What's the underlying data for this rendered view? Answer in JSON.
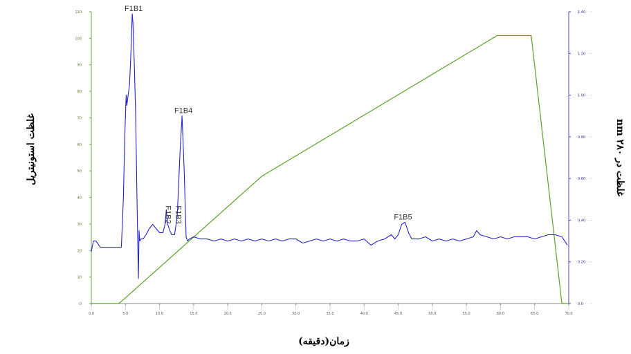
{
  "chart_data": {
    "type": "line",
    "title": "",
    "xlabel": "زمان(دقیقه)",
    "ylabel_left": "غلظت استونیتریل",
    "ylabel_right": "غلظت در nm ۲۸۰",
    "xlim": [
      0,
      70
    ],
    "ylim_left": [
      0,
      110
    ],
    "ylim_right": [
      0,
      1.4
    ],
    "x_ticks": [
      "0.0",
      "5.0",
      "10.0",
      "15.0",
      "20.0",
      "25.0",
      "30.0",
      "35.0",
      "40.0",
      "45.0",
      "50.0",
      "55.0",
      "60.0",
      "65.0",
      "70.0"
    ],
    "y_ticks_left": [
      "0",
      "10",
      "20",
      "30",
      "40",
      "50",
      "60",
      "70",
      "80",
      "90",
      "100",
      "110"
    ],
    "y_ticks_right": [
      "0.0",
      "0.20",
      "0.40",
      "0.60",
      "0.80",
      "1.00",
      "1.20",
      "1.40"
    ],
    "series": [
      {
        "axis": "left",
        "color": "#5aa028",
        "x": [
          0,
          4,
          4.5,
          25,
          59.5,
          64.5,
          69,
          70
        ],
        "y": [
          0,
          0,
          1,
          48,
          101,
          101,
          0,
          0
        ]
      },
      {
        "axis": "right",
        "color": "#2222cc",
        "x": [
          0,
          0.3,
          0.7,
          1.3,
          2,
          3,
          4,
          4.4,
          4.7,
          4.9,
          5.1,
          5.2,
          5.4,
          5.6,
          5.8,
          6,
          6.1,
          6.3,
          6.5,
          6.7,
          6.9,
          7,
          7.1,
          7.3,
          7.6,
          8,
          8.5,
          9,
          9.5,
          10,
          10.5,
          10.8,
          11,
          11.2,
          11.5,
          11.8,
          12.2,
          12.6,
          13,
          13.3,
          13.6,
          13.9,
          14.1,
          14.4,
          15,
          16,
          17,
          18,
          19,
          20,
          21,
          22,
          23,
          24,
          25,
          26,
          27,
          28,
          29,
          30,
          31,
          32,
          33,
          34,
          35,
          36,
          37,
          38,
          39,
          40,
          41,
          42,
          43,
          43.5,
          44,
          44.5,
          45,
          45.5,
          46,
          46.5,
          47,
          48,
          49,
          50,
          51,
          52,
          53,
          54,
          55,
          56,
          56.5,
          57,
          58,
          59,
          60,
          61,
          62,
          63,
          64,
          65,
          66,
          67,
          68,
          69,
          69.8
        ],
        "y": [
          0.25,
          0.3,
          0.3,
          0.27,
          0.27,
          0.27,
          0.27,
          0.27,
          0.5,
          0.8,
          1.0,
          0.95,
          1.0,
          1.05,
          1.2,
          1.39,
          1.35,
          1.15,
          0.9,
          0.5,
          0.12,
          0.35,
          0.3,
          0.31,
          0.31,
          0.33,
          0.36,
          0.38,
          0.36,
          0.34,
          0.34,
          0.38,
          0.45,
          0.38,
          0.35,
          0.33,
          0.33,
          0.42,
          0.72,
          0.9,
          0.65,
          0.32,
          0.3,
          0.31,
          0.32,
          0.31,
          0.31,
          0.3,
          0.31,
          0.3,
          0.31,
          0.3,
          0.31,
          0.3,
          0.31,
          0.3,
          0.31,
          0.3,
          0.31,
          0.31,
          0.29,
          0.3,
          0.31,
          0.3,
          0.31,
          0.3,
          0.31,
          0.3,
          0.3,
          0.31,
          0.28,
          0.3,
          0.31,
          0.32,
          0.33,
          0.31,
          0.33,
          0.38,
          0.39,
          0.34,
          0.31,
          0.31,
          0.32,
          0.3,
          0.31,
          0.3,
          0.31,
          0.3,
          0.31,
          0.32,
          0.35,
          0.33,
          0.32,
          0.31,
          0.32,
          0.31,
          0.32,
          0.32,
          0.32,
          0.31,
          0.32,
          0.33,
          0.33,
          0.32,
          0.28
        ]
      }
    ],
    "annotations": [
      {
        "text": "F1B1",
        "x": 6.0,
        "y": 1.39
      },
      {
        "text": "F1B4",
        "x": 13.3,
        "y": 0.9
      },
      {
        "text": "F1B2",
        "x": 10.5,
        "y": 0.45,
        "rotated": true
      },
      {
        "text": "F1B3",
        "x": 12.0,
        "y": 0.45,
        "rotated": true
      },
      {
        "text": "F1B5",
        "x": 45.5,
        "y": 0.39
      }
    ]
  }
}
